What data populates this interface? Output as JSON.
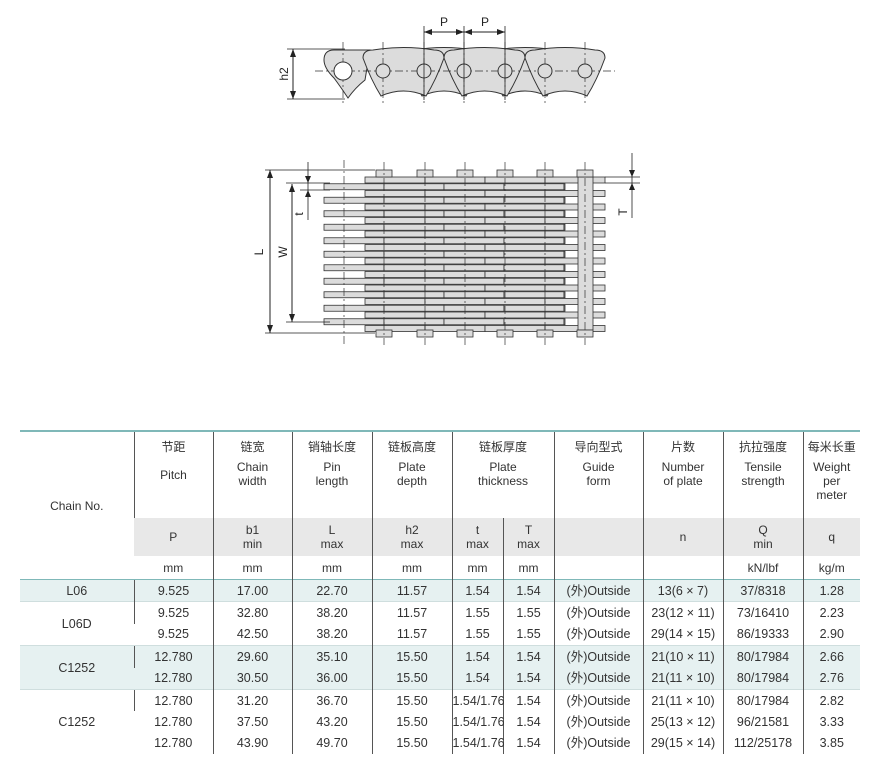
{
  "diagram": {
    "side_view_labels": {
      "pitch": "P",
      "pitch2": "P",
      "plate_depth": "h2"
    },
    "top_view_labels": {
      "pin_length": "L",
      "chain_width": "W",
      "plate_thickness_t": "t",
      "plate_thickness_T": "T"
    },
    "fill_color": "#dcdcdc",
    "line_color": "#333333"
  },
  "table": {
    "accent_color": "#7fb8b8",
    "chain_no_header": "Chain No.",
    "columns": [
      {
        "cn": "节距",
        "en": "Pitch",
        "symbol": "P",
        "sub": "",
        "unit": "mm"
      },
      {
        "cn": "链宽",
        "en": "Chain width",
        "symbol": "b1",
        "sub": "min",
        "unit": "mm"
      },
      {
        "cn": "销轴长度",
        "en": "Pin length",
        "symbol": "L",
        "sub": "max",
        "unit": "mm"
      },
      {
        "cn": "链板高度",
        "en": "Plate depth",
        "symbol": "h2",
        "sub": "max",
        "unit": "mm"
      },
      {
        "cn": "链板厚度",
        "en": "Plate thickness",
        "span": 2
      },
      {
        "cn": "导向型式",
        "en": "Guide form",
        "symbol": "",
        "sub": "",
        "unit": ""
      },
      {
        "cn": "片数",
        "en": "Number of plate",
        "symbol": "n",
        "sub": "",
        "unit": ""
      },
      {
        "cn": "抗拉强度",
        "en": "Tensile strength",
        "symbol": "Q",
        "sub": "min",
        "unit": "kN/lbf"
      },
      {
        "cn": "每米长重",
        "en": "Weight per meter",
        "symbol": "q",
        "sub": "",
        "unit": "kg/m"
      }
    ],
    "thickness_sub": [
      {
        "symbol": "t",
        "sub": "max",
        "unit": "mm"
      },
      {
        "symbol": "T",
        "sub": "max",
        "unit": "mm"
      }
    ],
    "groups": [
      {
        "chain_no": "L06",
        "shaded": true,
        "rows": [
          [
            "9.525",
            "17.00",
            "22.70",
            "11.57",
            "1.54",
            "1.54",
            "(外)Outside",
            "13(6 × 7)",
            "37/8318",
            "1.28"
          ]
        ]
      },
      {
        "chain_no": "L06D",
        "shaded": false,
        "rows": [
          [
            "9.525",
            "32.80",
            "38.20",
            "11.57",
            "1.55",
            "1.55",
            "(外)Outside",
            "23(12 × 11)",
            "73/16410",
            "2.23"
          ],
          [
            "9.525",
            "42.50",
            "38.20",
            "11.57",
            "1.55",
            "1.55",
            "(外)Outside",
            "29(14 × 15)",
            "86/19333",
            "2.90"
          ]
        ]
      },
      {
        "chain_no": "C1252",
        "shaded": true,
        "rows": [
          [
            "12.780",
            "29.60",
            "35.10",
            "15.50",
            "1.54",
            "1.54",
            "(外)Outside",
            "21(10 × 11)",
            "80/17984",
            "2.66"
          ],
          [
            "12.780",
            "30.50",
            "36.00",
            "15.50",
            "1.54",
            "1.54",
            "(外)Outside",
            "21(11 × 10)",
            "80/17984",
            "2.76"
          ]
        ]
      },
      {
        "chain_no": "C1252",
        "shaded": false,
        "rows": [
          [
            "12.780",
            "31.20",
            "36.70",
            "15.50",
            "1.54/1.76",
            "1.54",
            "(外)Outside",
            "21(11 × 10)",
            "80/17984",
            "2.82"
          ],
          [
            "12.780",
            "37.50",
            "43.20",
            "15.50",
            "1.54/1.76",
            "1.54",
            "(外)Outside",
            "25(13 × 12)",
            "96/21581",
            "3.33"
          ],
          [
            "12.780",
            "43.90",
            "49.70",
            "15.50",
            "1.54/1.76",
            "1.54",
            "(外)Outside",
            "29(15 × 14)",
            "112/25178",
            "3.85"
          ]
        ]
      }
    ]
  }
}
